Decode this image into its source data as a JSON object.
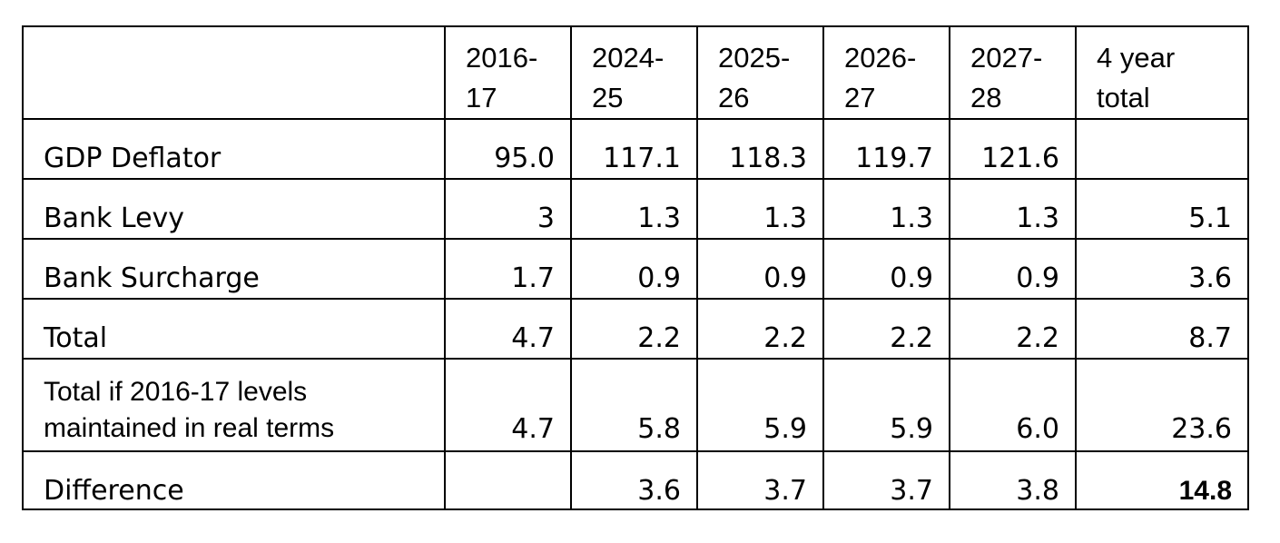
{
  "table": {
    "headers": [
      "",
      "2016-\n17",
      "2024-\n25",
      "2025-\n26",
      "2026-\n27",
      "2027-\n28",
      "4 year\ntotal"
    ],
    "header_lines": [
      [],
      [
        "2016-",
        "17"
      ],
      [
        "2024-",
        "25"
      ],
      [
        "2025-",
        "26"
      ],
      [
        "2026-",
        "27"
      ],
      [
        "2027-",
        "28"
      ],
      [
        "4 year",
        "total"
      ]
    ],
    "rows": [
      {
        "label": "GDP Deflator",
        "values": [
          "95.0",
          "117.1",
          "118.3",
          "119.7",
          "121.6",
          ""
        ]
      },
      {
        "label": "Bank Levy",
        "values": [
          "3",
          "1.3",
          "1.3",
          "1.3",
          "1.3",
          "5.1"
        ]
      },
      {
        "label": "Bank Surcharge",
        "values": [
          "1.7",
          "0.9",
          "0.9",
          "0.9",
          "0.9",
          "3.6"
        ]
      },
      {
        "label": "Total",
        "values": [
          "4.7",
          "2.2",
          "2.2",
          "2.2",
          "2.2",
          "8.7"
        ]
      },
      {
        "label_lines": [
          "Total if 2016-17 levels",
          "maintained in real terms"
        ],
        "values": [
          "4.7",
          "5.8",
          "5.9",
          "5.9",
          "6.0",
          "23.6"
        ]
      },
      {
        "label": "Difference",
        "values": [
          "",
          "3.6",
          "3.7",
          "3.7",
          "3.8",
          "14.8"
        ]
      }
    ]
  }
}
